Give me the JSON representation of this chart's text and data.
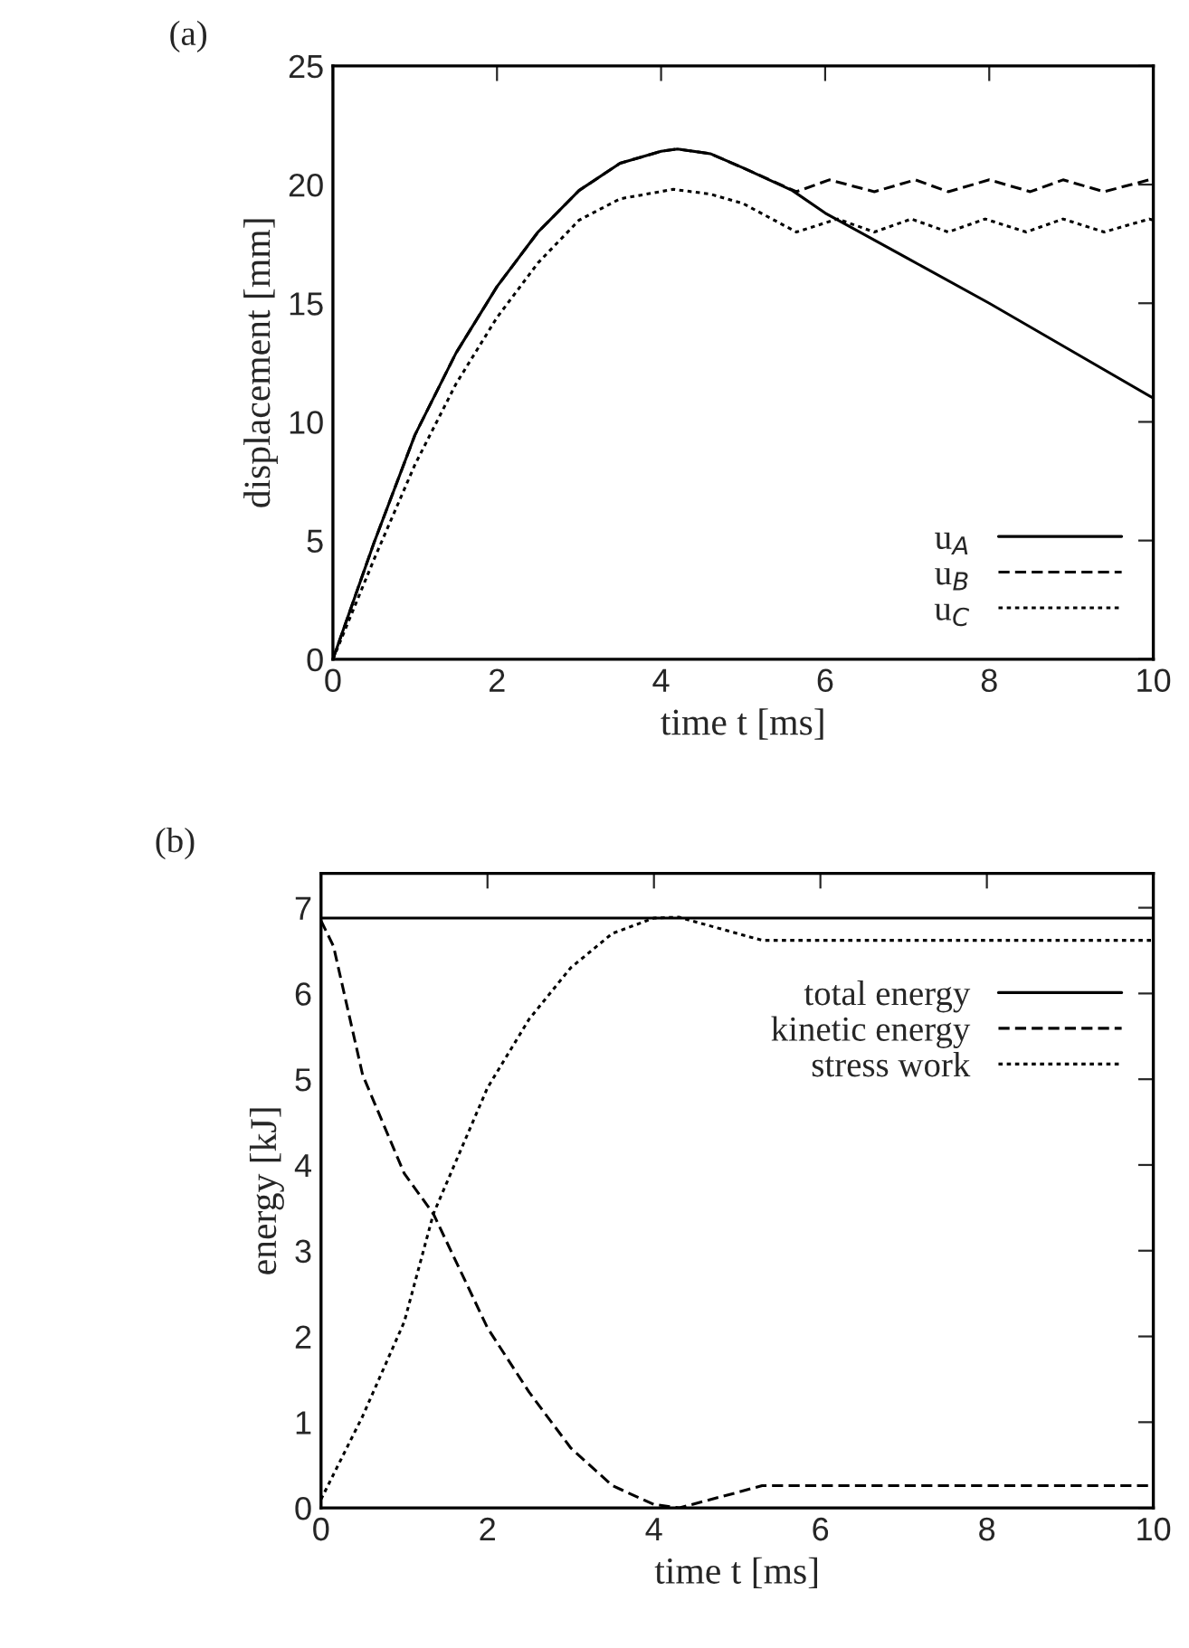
{
  "chart_data": [
    {
      "type": "line",
      "title": "(a)",
      "xlabel": "time t [ms]",
      "ylabel": "displacement [mm]",
      "xlim": [
        0,
        10
      ],
      "xticks": [
        0,
        2,
        4,
        6,
        8,
        10
      ],
      "ylim": [
        0,
        25
      ],
      "yticks": [
        0,
        5,
        10,
        15,
        20,
        25
      ],
      "grid": false,
      "legend": "bottom right",
      "marker": "none",
      "series": [
        {
          "name": "u$_{A}$",
          "color": "#000000",
          "line_style": "solid",
          "x": [
            0,
            0.5,
            1,
            1.5,
            2,
            2.5,
            3,
            3.5,
            4,
            4.2,
            4.6,
            5,
            5.6,
            6,
            7,
            8,
            9,
            10
          ],
          "values": [
            0,
            4.9,
            9.45,
            12.9,
            15.7,
            18.0,
            19.75,
            20.9,
            21.4,
            21.5,
            21.3,
            20.7,
            19.75,
            18.8,
            16.9,
            15.0,
            13.0,
            11.0
          ]
        },
        {
          "name": "u$_{B}$",
          "color": "#000000",
          "line_style": "dashed",
          "x": [
            0,
            0.5,
            1,
            1.5,
            2,
            2.5,
            3,
            3.5,
            4,
            4.2,
            4.6,
            5,
            5.65,
            6.05,
            6.6,
            7.1,
            7.5,
            8.0,
            8.5,
            8.9,
            9.4,
            9.95,
            10
          ],
          "values": [
            0,
            4.9,
            9.45,
            12.9,
            15.7,
            18.0,
            19.75,
            20.9,
            21.4,
            21.5,
            21.3,
            20.7,
            19.7,
            20.2,
            19.7,
            20.2,
            19.7,
            20.2,
            19.7,
            20.2,
            19.7,
            20.2,
            20.2
          ]
        },
        {
          "name": "u$_{C}$",
          "color": "#000000",
          "line_style": "dotted",
          "x": [
            0,
            0.5,
            1,
            1.5,
            2,
            2.5,
            3,
            3.5,
            4.15,
            4.6,
            5,
            5.65,
            6.15,
            6.6,
            7.05,
            7.5,
            7.95,
            8.45,
            8.9,
            9.4,
            9.95,
            10
          ],
          "values": [
            0,
            4.2,
            8.2,
            11.6,
            14.4,
            16.7,
            18.5,
            19.4,
            19.8,
            19.6,
            19.2,
            18.0,
            18.55,
            18.0,
            18.55,
            18.0,
            18.55,
            18.0,
            18.55,
            18.0,
            18.55,
            18.5
          ]
        }
      ]
    },
    {
      "type": "line",
      "title": "(b)",
      "xlabel": "time t [ms]",
      "ylabel": "energy [kJ]",
      "xlim": [
        0,
        10
      ],
      "xticks": [
        0,
        2,
        4,
        6,
        8,
        10
      ],
      "ylim": [
        0,
        7.4
      ],
      "yticks": [
        0,
        1,
        2,
        3,
        4,
        5,
        6,
        7
      ],
      "grid": false,
      "legend": "right",
      "marker": "none",
      "series": [
        {
          "name": "total energy",
          "color": "#000000",
          "line_style": "solid",
          "x": [
            0,
            10
          ],
          "values": [
            6.88,
            6.88
          ]
        },
        {
          "name": "kinetic energy",
          "color": "#000000",
          "line_style": "dashed",
          "x": [
            0,
            0.15,
            0.5,
            1,
            1.35,
            2,
            2.5,
            3,
            3.5,
            4,
            4.3,
            5,
            5.3,
            10
          ],
          "values": [
            6.85,
            6.55,
            5.05,
            3.9,
            3.43,
            2.1,
            1.35,
            0.7,
            0.26,
            0.04,
            0.0,
            0.18,
            0.26,
            0.26
          ]
        },
        {
          "name": "stress work",
          "color": "#000000",
          "line_style": "dotted",
          "x": [
            0,
            0.5,
            1,
            1.35,
            2,
            2.5,
            3,
            3.5,
            4,
            4.3,
            5,
            5.3,
            10
          ],
          "values": [
            0.1,
            1.07,
            2.17,
            3.43,
            4.9,
            5.7,
            6.3,
            6.7,
            6.88,
            6.89,
            6.7,
            6.62,
            6.62
          ]
        }
      ]
    }
  ]
}
